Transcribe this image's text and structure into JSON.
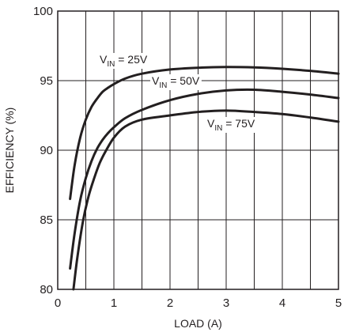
{
  "chart_data": {
    "type": "line",
    "title": "",
    "xlabel": "LOAD (A)",
    "ylabel": "EFFICIENCY (%)",
    "xlim": [
      0,
      5
    ],
    "ylim": [
      80,
      100
    ],
    "xticks": [
      0,
      1,
      2,
      3,
      4,
      5
    ],
    "yticks": [
      80,
      85,
      90,
      95,
      100
    ],
    "x_tick_labels": [
      "0",
      "1",
      "2",
      "3",
      "4",
      "5"
    ],
    "y_tick_labels": [
      "80",
      "85",
      "90",
      "95",
      "100"
    ],
    "x_minor_step": 0.5,
    "grid": true,
    "legend": "inline labels",
    "line_color": "#231f20",
    "grid_color": "#231f20",
    "series": [
      {
        "name": "V_IN = 25V",
        "label_main": "V",
        "label_sub": "IN",
        "label_rest": " = 25V",
        "x": [
          0.22,
          0.3,
          0.4,
          0.5,
          0.6,
          0.7,
          0.8,
          0.9,
          1.0,
          1.2,
          1.5,
          2.0,
          2.5,
          3.0,
          3.5,
          4.0,
          4.5,
          5.0
        ],
        "y": [
          86.5,
          88.9,
          90.9,
          92.2,
          93.1,
          93.7,
          94.2,
          94.5,
          94.75,
          95.15,
          95.5,
          95.8,
          95.93,
          95.98,
          95.95,
          95.85,
          95.7,
          95.5
        ]
      },
      {
        "name": "V_IN = 50V",
        "label_main": "V",
        "label_sub": "IN",
        "label_rest": " = 50V",
        "x": [
          0.22,
          0.3,
          0.4,
          0.5,
          0.6,
          0.7,
          0.8,
          0.9,
          1.0,
          1.2,
          1.5,
          2.0,
          2.5,
          3.0,
          3.5,
          4.0,
          4.5,
          5.0
        ],
        "y": [
          81.5,
          84.0,
          86.4,
          88.0,
          89.2,
          90.1,
          90.75,
          91.25,
          91.65,
          92.3,
          92.9,
          93.6,
          94.05,
          94.3,
          94.35,
          94.2,
          94.0,
          93.75
        ]
      },
      {
        "name": "V_IN = 75V",
        "label_main": "V",
        "label_sub": "IN",
        "label_rest": " = 75V",
        "x": [
          0.28,
          0.35,
          0.45,
          0.55,
          0.65,
          0.75,
          0.85,
          1.0,
          1.2,
          1.5,
          2.0,
          2.5,
          3.0,
          3.5,
          4.0,
          4.5,
          5.0
        ],
        "y": [
          80.0,
          82.3,
          84.9,
          86.7,
          88.0,
          89.1,
          89.9,
          90.9,
          91.7,
          92.2,
          92.5,
          92.75,
          92.85,
          92.75,
          92.6,
          92.35,
          92.05
        ]
      }
    ]
  }
}
